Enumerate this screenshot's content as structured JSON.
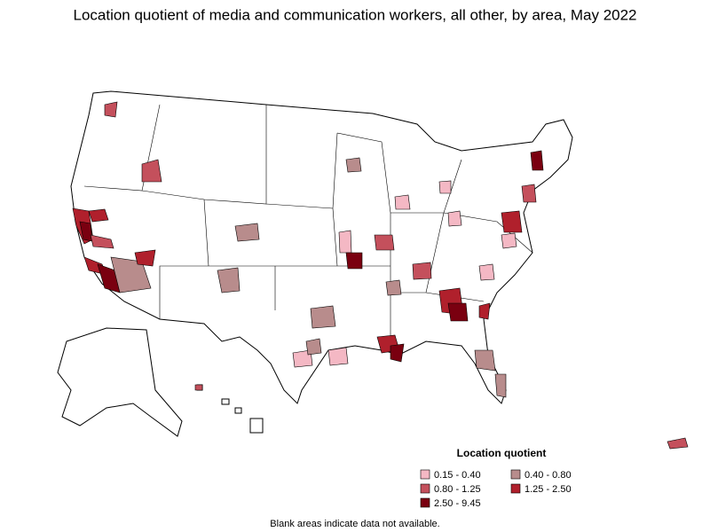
{
  "title": "Location quotient of media and communication workers, all other, by area, May 2022",
  "legend": {
    "title": "Location quotient",
    "items": [
      {
        "label": "0.15 - 0.40",
        "color": "#f4b8c4"
      },
      {
        "label": "0.40 - 0.80",
        "color": "#b88c8c"
      },
      {
        "label": "0.80 - 1.25",
        "color": "#c4505c"
      },
      {
        "label": "1.25 - 2.50",
        "color": "#b0202c"
      },
      {
        "label": "2.50 - 9.45",
        "color": "#7a0010"
      }
    ]
  },
  "note": "Blank areas indicate data not available."
}
